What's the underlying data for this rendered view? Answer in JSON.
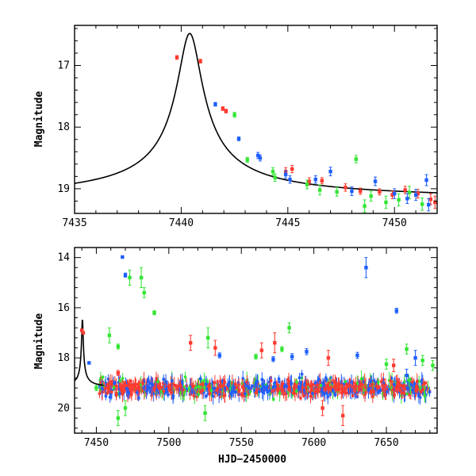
{
  "colors": {
    "red": "#ff3b30",
    "green": "#33e633",
    "blue": "#1f5fff"
  },
  "chart_data": [
    {
      "type": "scatter",
      "title": "",
      "xlabel": "",
      "ylabel": "Magnitude",
      "xlim": [
        7435,
        7452
      ],
      "ylim": [
        16.35,
        19.4
      ],
      "y_inverted": true,
      "xticks": [
        7435,
        7440,
        7445,
        7450
      ],
      "yticks": [
        17,
        18,
        19
      ],
      "model": {
        "t0": 7440.4,
        "peak": 16.48,
        "base": 19.2,
        "tau": 1.15
      },
      "series": [
        {
          "color_key": "red",
          "points": [
            [
              7439.8,
              16.87,
              0.03
            ],
            [
              7440.9,
              16.93,
              0.03
            ],
            [
              7441.95,
              17.7,
              0.03
            ],
            [
              7442.1,
              17.74,
              0.03
            ],
            [
              7444.9,
              18.72,
              0.06
            ],
            [
              7445.2,
              18.68,
              0.06
            ],
            [
              7446.6,
              18.87,
              0.05
            ],
            [
              7447.7,
              18.98,
              0.06
            ],
            [
              7448.4,
              19.04,
              0.05
            ],
            [
              7449.3,
              19.05,
              0.05
            ],
            [
              7450.5,
              19.02,
              0.06
            ],
            [
              7451.1,
              19.08,
              0.07
            ],
            [
              7451.7,
              19.17,
              0.09
            ],
            [
              7451.9,
              19.22,
              0.1
            ],
            [
              7449.9,
              19.1,
              0.06
            ],
            [
              7446.0,
              18.88,
              0.06
            ]
          ]
        },
        {
          "color_key": "green",
          "points": [
            [
              7442.5,
              17.8,
              0.04
            ],
            [
              7443.1,
              18.53,
              0.04
            ],
            [
              7444.3,
              18.72,
              0.06
            ],
            [
              7444.4,
              18.82,
              0.06
            ],
            [
              7445.9,
              18.93,
              0.07
            ],
            [
              7446.5,
              19.02,
              0.08
            ],
            [
              7447.3,
              19.05,
              0.07
            ],
            [
              7448.2,
              18.52,
              0.06
            ],
            [
              7448.9,
              19.12,
              0.08
            ],
            [
              7449.6,
              19.22,
              0.1
            ],
            [
              7450.2,
              19.18,
              0.1
            ],
            [
              7450.7,
              19.06,
              0.1
            ],
            [
              7451.3,
              19.25,
              0.1
            ],
            [
              7448.6,
              19.28,
              0.1
            ]
          ]
        },
        {
          "color_key": "blue",
          "points": [
            [
              7441.6,
              17.63,
              0.03
            ],
            [
              7442.7,
              18.19,
              0.03
            ],
            [
              7443.6,
              18.46,
              0.05
            ],
            [
              7443.7,
              18.5,
              0.05
            ],
            [
              7444.9,
              18.77,
              0.06
            ],
            [
              7445.1,
              18.85,
              0.06
            ],
            [
              7446.3,
              18.85,
              0.06
            ],
            [
              7447.0,
              18.72,
              0.07
            ],
            [
              7448.0,
              19.04,
              0.07
            ],
            [
              7449.1,
              18.88,
              0.07
            ],
            [
              7450.0,
              19.08,
              0.08
            ],
            [
              7450.6,
              19.16,
              0.08
            ],
            [
              7451.0,
              19.1,
              0.09
            ],
            [
              7451.5,
              18.86,
              0.09
            ],
            [
              7451.6,
              19.26,
              0.1
            ]
          ]
        }
      ]
    },
    {
      "type": "scatter",
      "title": "",
      "xlabel": "HJD−2450000",
      "ylabel": "Magnitude",
      "xlim": [
        7435,
        7685
      ],
      "ylim": [
        13.6,
        21.0
      ],
      "y_inverted": true,
      "xticks": [
        7450,
        7500,
        7550,
        7600,
        7650
      ],
      "yticks": [
        14,
        16,
        18,
        20
      ],
      "baseline": {
        "start": 7452,
        "end": 7680,
        "level": 19.2,
        "scatter": 0.45
      },
      "series": [
        {
          "color_key": "blue",
          "points": [
            [
              7468,
              13.98,
              0.05
            ],
            [
              7470,
              14.7,
              0.08
            ],
            [
              7535,
              17.9,
              0.1
            ],
            [
              7572,
              18.05,
              0.1
            ],
            [
              7585,
              17.95,
              0.12
            ],
            [
              7595,
              17.75,
              0.12
            ],
            [
              7630,
              17.9,
              0.12
            ],
            [
              7636,
              14.4,
              0.4
            ],
            [
              7657,
              16.12,
              0.1
            ],
            [
              7664,
              18.7,
              0.25
            ],
            [
              7670,
              18.0,
              0.3
            ],
            [
              7445,
              18.2,
              0.05
            ]
          ]
        },
        {
          "color_key": "green",
          "points": [
            [
              7450,
              19.2,
              0.1
            ],
            [
              7459,
              17.1,
              0.3
            ],
            [
              7465,
              17.55,
              0.1
            ],
            [
              7473,
              14.8,
              0.3
            ],
            [
              7481,
              14.8,
              0.4
            ],
            [
              7483,
              15.4,
              0.2
            ],
            [
              7490,
              16.2,
              0.08
            ],
            [
              7527,
              17.2,
              0.4
            ],
            [
              7560,
              17.95,
              0.1
            ],
            [
              7578,
              17.65,
              0.1
            ],
            [
              7583,
              16.8,
              0.2
            ],
            [
              7650,
              18.25,
              0.2
            ],
            [
              7664,
              17.65,
              0.2
            ],
            [
              7675,
              18.1,
              0.2
            ],
            [
              7682,
              18.3,
              0.2
            ],
            [
              7465,
              20.4,
              0.3
            ],
            [
              7525,
              20.2,
              0.3
            ],
            [
              7470,
              20.0,
              0.3
            ]
          ]
        },
        {
          "color_key": "red",
          "points": [
            [
              7440,
              16.9,
              0.05
            ],
            [
              7441,
              17.0,
              0.05
            ],
            [
              7465,
              18.6,
              0.1
            ],
            [
              7515,
              17.4,
              0.3
            ],
            [
              7532,
              17.6,
              0.3
            ],
            [
              7564,
              17.7,
              0.3
            ],
            [
              7573,
              17.4,
              0.4
            ],
            [
              7610,
              18.0,
              0.3
            ],
            [
              7620,
              20.3,
              0.4
            ],
            [
              7655,
              18.3,
              0.25
            ],
            [
              7606,
              20.0,
              0.3
            ]
          ]
        }
      ]
    }
  ]
}
